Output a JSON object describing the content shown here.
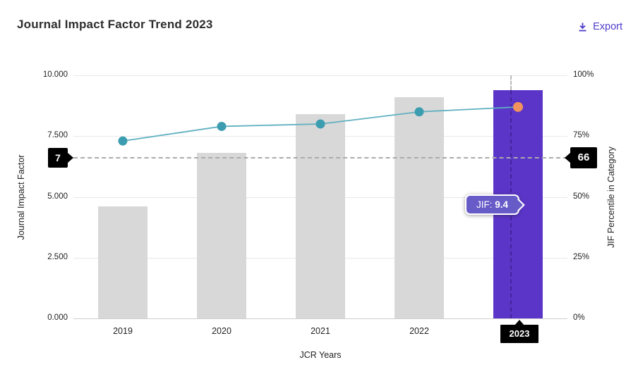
{
  "header": {
    "title": "Journal Impact Factor Trend 2023",
    "export_label": "Export"
  },
  "chart_data": {
    "type": "bar",
    "title": "Journal Impact Factor Trend 2023",
    "categories": [
      "2019",
      "2020",
      "2021",
      "2022",
      "2023"
    ],
    "series": [
      {
        "name": "Journal Impact Factor",
        "type": "bar",
        "axis": "left",
        "values": [
          4.6,
          6.8,
          8.4,
          9.1,
          9.4
        ]
      },
      {
        "name": "JIF Percentile in Category",
        "type": "line",
        "axis": "right",
        "values": [
          73,
          79,
          80,
          85,
          87
        ]
      }
    ],
    "highlight_category": "2023",
    "tooltip": {
      "label": "JIF:",
      "value": "9.4"
    },
    "reference": {
      "left_label": "7",
      "right_label": "66",
      "percentile_value": 66
    },
    "left_axis": {
      "title": "Journal Impact Factor",
      "min": 0,
      "max": 10,
      "ticks": [
        "10.000",
        "7.500",
        "5.000",
        "2.500",
        "0.000"
      ]
    },
    "right_axis": {
      "title": "JIF Percentile in Category",
      "min": 0,
      "max": 100,
      "ticks": [
        "100%",
        "75%",
        "50%",
        "25%",
        "0%"
      ]
    },
    "x_axis": {
      "title": "JCR Years"
    },
    "legend": "off",
    "grid": "horizontal",
    "colors": {
      "bar": "#d8d8d8",
      "highlight_bar": "#5b35c8",
      "line": "#5fb0c0",
      "dot": "#3c9db0",
      "highlight_dot": "#f2925c",
      "export_accent": "#4e3ccb",
      "marker_bg": "#000000",
      "tooltip_bg": "#675bc8"
    }
  }
}
